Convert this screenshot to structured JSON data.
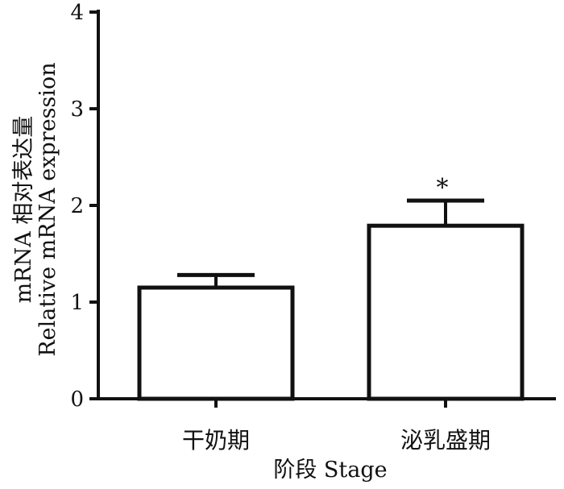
{
  "chart_data": {
    "type": "bar",
    "categories": [
      "干奶期",
      "泌乳盛期"
    ],
    "values": [
      1.15,
      1.79
    ],
    "error_upper": [
      0.13,
      0.26
    ],
    "significance": [
      "",
      "*"
    ],
    "xlabel": "阶段  Stage",
    "ylabel_lines": [
      "mRNA 相对表达量",
      "Relative mRNA expression"
    ],
    "ylim": [
      0,
      4
    ],
    "yticks": [
      0,
      1,
      2,
      3,
      4
    ],
    "grid": false,
    "legend": "none",
    "colors": {
      "bar_fill": "#ffffff",
      "bar_stroke": "#111111",
      "axis": "#111111"
    }
  }
}
